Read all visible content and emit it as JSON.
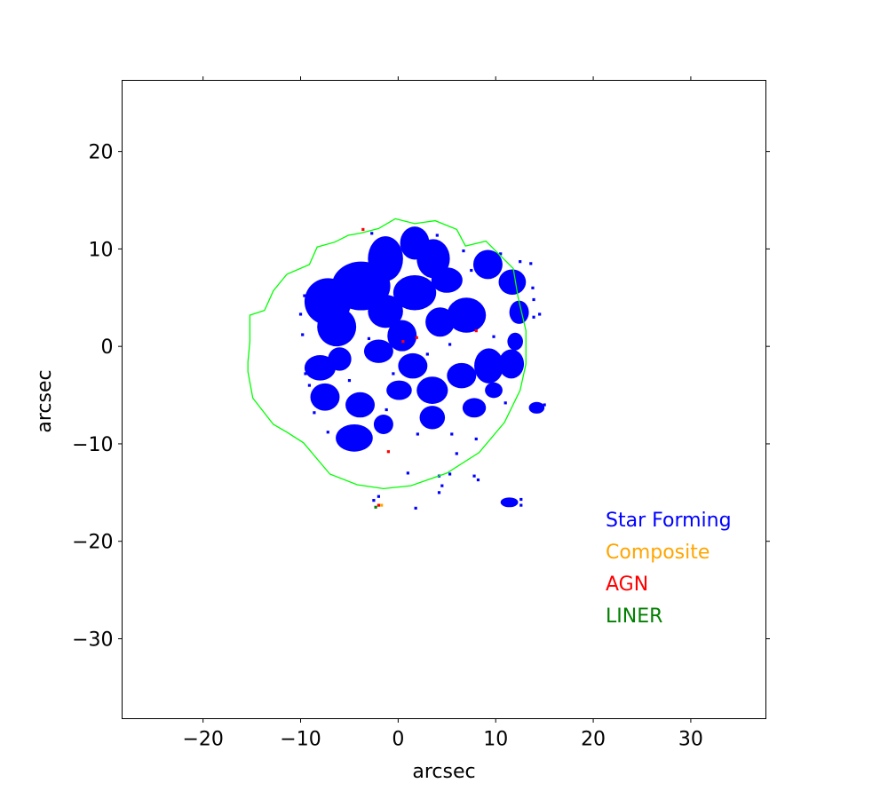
{
  "chart_data": {
    "type": "scatter",
    "title": "",
    "xlabel": "arcsec",
    "ylabel": "arcsec",
    "xlim": [
      -28.3,
      37.7
    ],
    "ylim": [
      -38.2,
      27.3
    ],
    "grid": false,
    "xticks": [
      -20,
      -10,
      0,
      10,
      20,
      30
    ],
    "yticks": [
      20,
      10,
      0,
      -10,
      -20,
      -30
    ],
    "xtick_labels": [
      "−20",
      "−10",
      "0",
      "10",
      "20",
      "30"
    ],
    "ytick_labels": [
      "20",
      "10",
      "0",
      "−10",
      "−20",
      "−30"
    ],
    "legend": {
      "placement": "lower-right",
      "entries": [
        {
          "label": "Star Forming",
          "color": "#0000ff"
        },
        {
          "label": "Composite",
          "color": "#ffa500"
        },
        {
          "label": "AGN",
          "color": "#ff0000"
        },
        {
          "label": "LINER",
          "color": "#008000"
        }
      ]
    },
    "boundary_color": "#00ff00",
    "boundary": [
      [
        -0.3,
        13.1
      ],
      [
        1.7,
        12.6
      ],
      [
        3.8,
        12.9
      ],
      [
        6.0,
        12.0
      ],
      [
        6.9,
        10.3
      ],
      [
        9.0,
        10.8
      ],
      [
        11.8,
        8.0
      ],
      [
        12.3,
        5.0
      ],
      [
        13.1,
        1.6
      ],
      [
        13.1,
        -1.8
      ],
      [
        12.5,
        -4.5
      ],
      [
        10.9,
        -7.8
      ],
      [
        8.3,
        -10.9
      ],
      [
        5.0,
        -13.0
      ],
      [
        1.3,
        -14.3
      ],
      [
        -1.5,
        -14.6
      ],
      [
        -4.2,
        -14.2
      ],
      [
        -7.0,
        -13.1
      ],
      [
        -9.7,
        -9.9
      ],
      [
        -11.4,
        -8.8
      ],
      [
        -12.8,
        -8.0
      ],
      [
        -14.9,
        -5.3
      ],
      [
        -15.4,
        -2.6
      ],
      [
        -15.4,
        -1.6
      ],
      [
        -15.2,
        0.5
      ],
      [
        -15.2,
        3.2
      ],
      [
        -13.7,
        3.7
      ],
      [
        -12.8,
        5.7
      ],
      [
        -11.4,
        7.4
      ],
      [
        -9.1,
        8.4
      ],
      [
        -8.3,
        10.2
      ],
      [
        -6.5,
        10.7
      ],
      [
        -5.1,
        11.4
      ],
      [
        -3.9,
        11.6
      ],
      [
        -2.0,
        12.1
      ],
      [
        -0.3,
        13.1
      ]
    ],
    "blobs": [
      {
        "category": "Star Forming",
        "cx": -3.8,
        "cy": 6.2,
        "rx": 3.0,
        "ry": 2.5
      },
      {
        "category": "Star Forming",
        "cx": -7.2,
        "cy": 4.6,
        "rx": 2.4,
        "ry": 2.4
      },
      {
        "category": "Star Forming",
        "cx": -6.3,
        "cy": 2.0,
        "rx": 2.0,
        "ry": 2.0
      },
      {
        "category": "Star Forming",
        "cx": -1.3,
        "cy": 9.0,
        "rx": 1.8,
        "ry": 2.3
      },
      {
        "category": "Star Forming",
        "cx": 1.7,
        "cy": 10.6,
        "rx": 1.5,
        "ry": 1.7
      },
      {
        "category": "Star Forming",
        "cx": 3.6,
        "cy": 9.0,
        "rx": 1.7,
        "ry": 2.0
      },
      {
        "category": "Star Forming",
        "cx": 5.0,
        "cy": 6.8,
        "rx": 1.6,
        "ry": 1.3
      },
      {
        "category": "Star Forming",
        "cx": 1.7,
        "cy": 5.5,
        "rx": 2.2,
        "ry": 1.8
      },
      {
        "category": "Star Forming",
        "cx": -1.3,
        "cy": 3.6,
        "rx": 1.8,
        "ry": 1.7
      },
      {
        "category": "Star Forming",
        "cx": 0.4,
        "cy": 1.1,
        "rx": 1.5,
        "ry": 1.6
      },
      {
        "category": "Star Forming",
        "cx": -2.0,
        "cy": -0.5,
        "rx": 1.5,
        "ry": 1.2
      },
      {
        "category": "Star Forming",
        "cx": 9.2,
        "cy": 8.4,
        "rx": 1.5,
        "ry": 1.5
      },
      {
        "category": "Star Forming",
        "cx": 11.7,
        "cy": 6.6,
        "rx": 1.4,
        "ry": 1.3
      },
      {
        "category": "Star Forming",
        "cx": 7.0,
        "cy": 3.2,
        "rx": 2.0,
        "ry": 1.8
      },
      {
        "category": "Star Forming",
        "cx": 4.3,
        "cy": 2.5,
        "rx": 1.5,
        "ry": 1.5
      },
      {
        "category": "Star Forming",
        "cx": 12.4,
        "cy": 3.5,
        "rx": 1.0,
        "ry": 1.2
      },
      {
        "category": "Star Forming",
        "cx": -8.0,
        "cy": -2.2,
        "rx": 1.6,
        "ry": 1.3
      },
      {
        "category": "Star Forming",
        "cx": -6.0,
        "cy": -1.3,
        "rx": 1.2,
        "ry": 1.2
      },
      {
        "category": "Star Forming",
        "cx": -7.5,
        "cy": -5.2,
        "rx": 1.5,
        "ry": 1.4
      },
      {
        "category": "Star Forming",
        "cx": -3.9,
        "cy": -6.0,
        "rx": 1.5,
        "ry": 1.3
      },
      {
        "category": "Star Forming",
        "cx": -4.5,
        "cy": -9.4,
        "rx": 1.9,
        "ry": 1.4
      },
      {
        "category": "Star Forming",
        "cx": -1.5,
        "cy": -8.0,
        "rx": 1.0,
        "ry": 1.0
      },
      {
        "category": "Star Forming",
        "cx": 0.1,
        "cy": -4.5,
        "rx": 1.3,
        "ry": 1.0
      },
      {
        "category": "Star Forming",
        "cx": 1.5,
        "cy": -2.0,
        "rx": 1.5,
        "ry": 1.3
      },
      {
        "category": "Star Forming",
        "cx": 3.5,
        "cy": -4.5,
        "rx": 1.6,
        "ry": 1.4
      },
      {
        "category": "Star Forming",
        "cx": 3.5,
        "cy": -7.3,
        "rx": 1.3,
        "ry": 1.2
      },
      {
        "category": "Star Forming",
        "cx": 6.5,
        "cy": -3.0,
        "rx": 1.5,
        "ry": 1.3
      },
      {
        "category": "Star Forming",
        "cx": 7.8,
        "cy": -6.3,
        "rx": 1.2,
        "ry": 1.0
      },
      {
        "category": "Star Forming",
        "cx": 9.3,
        "cy": -2.0,
        "rx": 1.5,
        "ry": 1.8
      },
      {
        "category": "Star Forming",
        "cx": 11.6,
        "cy": -1.8,
        "rx": 1.3,
        "ry": 1.5
      },
      {
        "category": "Star Forming",
        "cx": 14.2,
        "cy": -6.3,
        "rx": 0.8,
        "ry": 0.6
      },
      {
        "category": "Star Forming",
        "cx": 11.4,
        "cy": -16.0,
        "rx": 0.9,
        "ry": 0.5
      },
      {
        "category": "Star Forming",
        "cx": 12.0,
        "cy": 0.5,
        "rx": 0.8,
        "ry": 0.9
      },
      {
        "category": "Star Forming",
        "cx": 9.8,
        "cy": -4.5,
        "rx": 0.9,
        "ry": 0.8
      }
    ],
    "points": [
      {
        "category": "AGN",
        "x": 0.5,
        "y": 0.5
      },
      {
        "category": "AGN",
        "x": 1.9,
        "y": 0.9
      },
      {
        "category": "AGN",
        "x": -3.6,
        "y": 12.0
      },
      {
        "category": "AGN",
        "x": 8.0,
        "y": 1.6
      },
      {
        "category": "AGN",
        "x": -1.0,
        "y": -10.8
      },
      {
        "category": "AGN",
        "x": -2.0,
        "y": -16.3
      },
      {
        "category": "Composite",
        "x": -1.7,
        "y": -16.3
      },
      {
        "category": "LINER",
        "x": -2.3,
        "y": -16.5
      },
      {
        "category": "Star Forming",
        "x": -9.6,
        "y": 5.2
      },
      {
        "category": "Star Forming",
        "x": -9.8,
        "y": 1.2
      },
      {
        "category": "Star Forming",
        "x": -9.1,
        "y": -4.0
      },
      {
        "category": "Star Forming",
        "x": -8.6,
        "y": -6.8
      },
      {
        "category": "Star Forming",
        "x": -7.2,
        "y": -8.8
      },
      {
        "category": "Star Forming",
        "x": -2.7,
        "y": 11.6
      },
      {
        "category": "Star Forming",
        "x": 4.0,
        "y": 11.4
      },
      {
        "category": "Star Forming",
        "x": 12.5,
        "y": 8.7
      },
      {
        "category": "Star Forming",
        "x": 13.6,
        "y": 8.5
      },
      {
        "category": "Star Forming",
        "x": 13.8,
        "y": 6.0
      },
      {
        "category": "Star Forming",
        "x": 13.9,
        "y": 3.0
      },
      {
        "category": "Star Forming",
        "x": 10.5,
        "y": 9.5
      },
      {
        "category": "Star Forming",
        "x": 8.0,
        "y": -9.5
      },
      {
        "category": "Star Forming",
        "x": 5.5,
        "y": -9.0
      },
      {
        "category": "Star Forming",
        "x": 2.0,
        "y": -9.0
      },
      {
        "category": "Star Forming",
        "x": -1.2,
        "y": -6.5
      },
      {
        "category": "Star Forming",
        "x": 1.0,
        "y": -13.0
      },
      {
        "category": "Star Forming",
        "x": 4.2,
        "y": -13.3
      },
      {
        "category": "Star Forming",
        "x": 4.5,
        "y": -14.3
      },
      {
        "category": "Star Forming",
        "x": 5.3,
        "y": -13.1
      },
      {
        "category": "Star Forming",
        "x": 7.8,
        "y": -13.3
      },
      {
        "category": "Star Forming",
        "x": 8.2,
        "y": -13.7
      },
      {
        "category": "Star Forming",
        "x": 4.2,
        "y": -15.0
      },
      {
        "category": "Star Forming",
        "x": 1.8,
        "y": -16.6
      },
      {
        "category": "Star Forming",
        "x": -2.5,
        "y": -15.8
      },
      {
        "category": "Star Forming",
        "x": -2.0,
        "y": -15.4
      },
      {
        "category": "Star Forming",
        "x": 12.6,
        "y": -15.7
      },
      {
        "category": "Star Forming",
        "x": 12.6,
        "y": -16.3
      },
      {
        "category": "Star Forming",
        "x": 15.0,
        "y": -6.0
      },
      {
        "category": "Star Forming",
        "x": 14.5,
        "y": 3.3
      },
      {
        "category": "Star Forming",
        "x": 13.9,
        "y": 4.8
      },
      {
        "category": "Star Forming",
        "x": 7.5,
        "y": 7.8
      },
      {
        "category": "Star Forming",
        "x": 6.7,
        "y": 9.8
      },
      {
        "category": "Star Forming",
        "x": 3.0,
        "y": -0.8
      },
      {
        "category": "Star Forming",
        "x": -3.0,
        "y": 0.8
      },
      {
        "category": "Star Forming",
        "x": -10.0,
        "y": 3.3
      },
      {
        "category": "Star Forming",
        "x": -9.5,
        "y": -2.8
      },
      {
        "category": "Star Forming",
        "x": -5.0,
        "y": -3.5
      },
      {
        "category": "Star Forming",
        "x": -0.5,
        "y": -2.8
      },
      {
        "category": "Star Forming",
        "x": 5.3,
        "y": 0.2
      },
      {
        "category": "Star Forming",
        "x": 9.8,
        "y": 1.0
      },
      {
        "category": "Star Forming",
        "x": 11.0,
        "y": -5.8
      },
      {
        "category": "Star Forming",
        "x": 6.0,
        "y": -11.0
      }
    ]
  }
}
